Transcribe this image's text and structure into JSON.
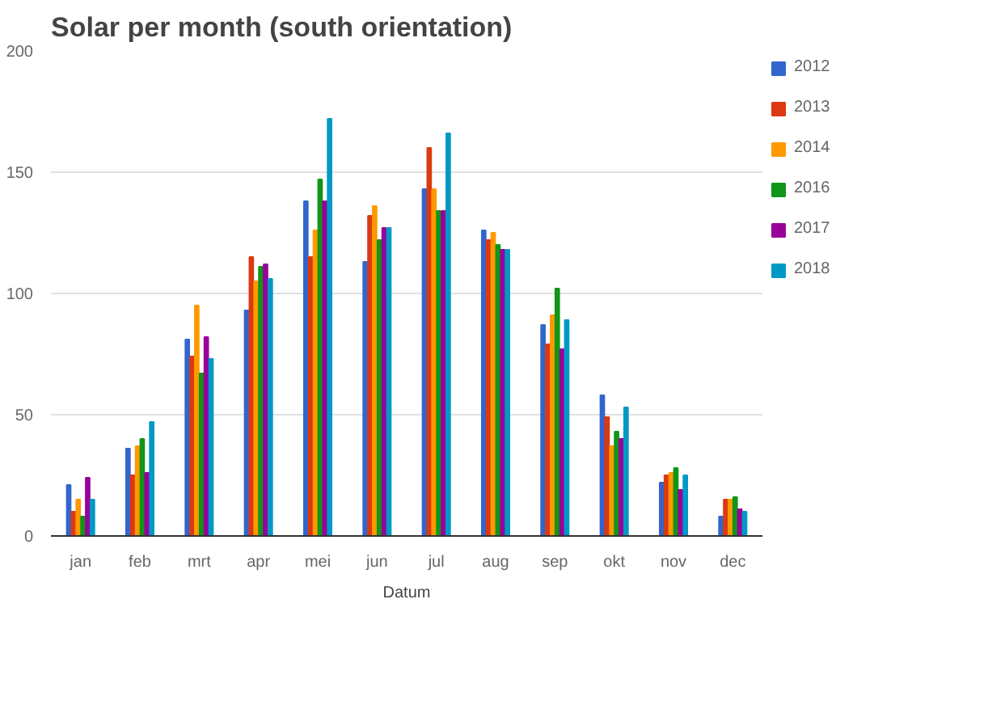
{
  "chart_data": {
    "type": "bar",
    "title": "Solar per month (south orientation)",
    "xlabel": "Datum",
    "categories": [
      "jan",
      "feb",
      "mrt",
      "apr",
      "mei",
      "jun",
      "jul",
      "aug",
      "sep",
      "okt",
      "nov",
      "dec"
    ],
    "series": [
      {
        "name": "2012",
        "color": "#3366cc",
        "values": [
          21,
          36,
          81,
          93,
          138,
          113,
          143,
          126,
          87,
          58,
          22,
          8
        ]
      },
      {
        "name": "2013",
        "color": "#dc3912",
        "values": [
          10,
          25,
          74,
          115,
          115,
          132,
          160,
          122,
          79,
          49,
          25,
          15
        ]
      },
      {
        "name": "2014",
        "color": "#ff9900",
        "values": [
          15,
          37,
          95,
          105,
          126,
          136,
          143,
          125,
          91,
          37,
          26,
          15
        ]
      },
      {
        "name": "2016",
        "color": "#109618",
        "values": [
          8,
          40,
          67,
          111,
          147,
          122,
          134,
          120,
          102,
          43,
          28,
          16
        ]
      },
      {
        "name": "2017",
        "color": "#990099",
        "values": [
          24,
          26,
          82,
          112,
          138,
          127,
          134,
          118,
          77,
          40,
          19,
          11
        ]
      },
      {
        "name": "2018",
        "color": "#0099c6",
        "values": [
          15,
          47,
          73,
          106,
          172,
          127,
          166,
          118,
          89,
          53,
          25,
          10
        ]
      }
    ],
    "ylim": [
      0,
      200
    ],
    "yticks": [
      0,
      50,
      100,
      150,
      200
    ],
    "grid": "y",
    "legend": "right"
  }
}
